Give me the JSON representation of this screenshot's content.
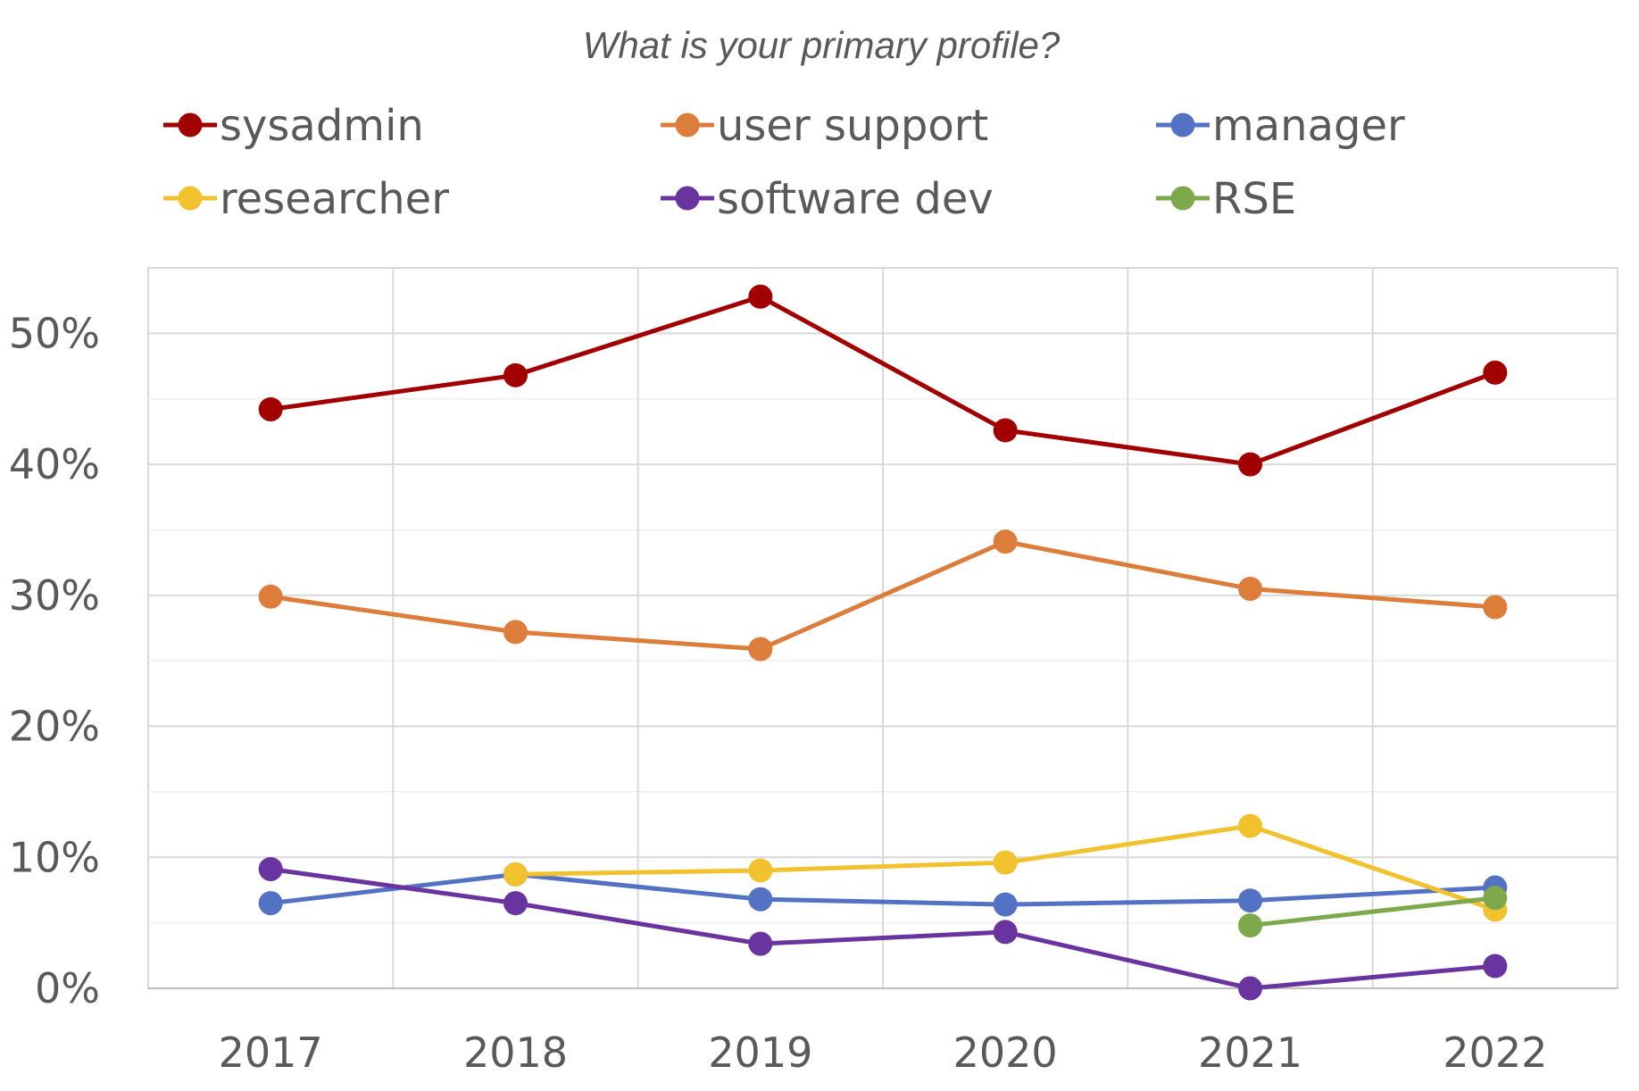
{
  "chart_data": {
    "type": "line",
    "title": "What is your primary profile?",
    "categories": [
      "2017",
      "2018",
      "2019",
      "2020",
      "2021",
      "2022"
    ],
    "ylim": [
      0,
      55
    ],
    "yticks": [
      0,
      10,
      20,
      30,
      40,
      50
    ],
    "ytick_labels": [
      "0%",
      "10%",
      "20%",
      "30%",
      "40%",
      "50%"
    ],
    "grid": true,
    "legend_position": "top",
    "series": [
      {
        "name": "sysadmin",
        "color": "#a20000",
        "values": [
          44.2,
          46.8,
          52.8,
          42.6,
          40.0,
          47.0
        ]
      },
      {
        "name": "user support",
        "color": "#dc7d3b",
        "values": [
          29.9,
          27.2,
          25.9,
          34.1,
          30.5,
          29.1
        ]
      },
      {
        "name": "manager",
        "color": "#5472c4",
        "values": [
          6.5,
          8.7,
          6.8,
          6.4,
          6.7,
          7.7
        ]
      },
      {
        "name": "researcher",
        "color": "#f2c12e",
        "values": [
          null,
          8.7,
          9.0,
          9.6,
          12.4,
          6.0
        ]
      },
      {
        "name": "software dev",
        "color": "#6a34a0",
        "values": [
          9.1,
          6.5,
          3.4,
          4.3,
          0.0,
          1.7
        ]
      },
      {
        "name": "RSE",
        "color": "#7ea94a",
        "values": [
          null,
          null,
          null,
          null,
          4.8,
          6.9
        ]
      }
    ]
  }
}
